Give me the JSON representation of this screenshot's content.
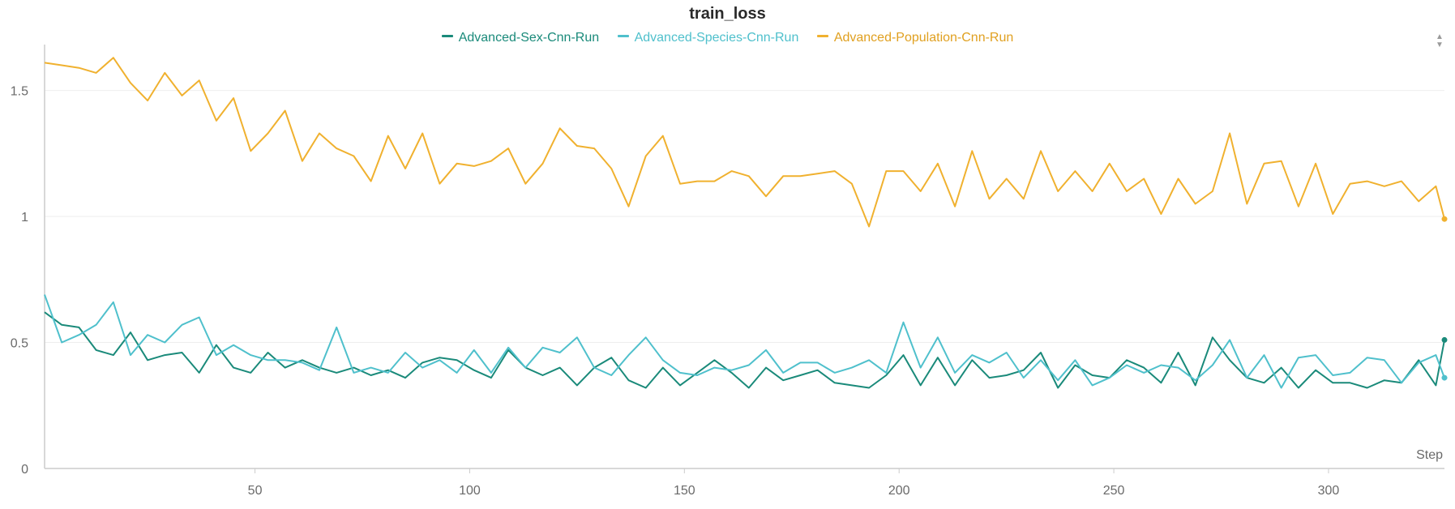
{
  "chart_data": {
    "type": "line",
    "title": "train_loss",
    "xlabel": "Step",
    "ylabel": "",
    "xlim": [
      1,
      327
    ],
    "ylim": [
      0,
      1.65
    ],
    "x_ticks": [
      50,
      100,
      150,
      200,
      250,
      300
    ],
    "y_ticks": [
      0,
      0.5,
      1,
      1.5
    ],
    "y_tick_labels": [
      "0",
      "0.5",
      "1",
      "1.5"
    ],
    "grid": true,
    "legend_position": "top-center",
    "x": [
      1,
      5,
      9,
      13,
      17,
      21,
      25,
      29,
      33,
      37,
      41,
      45,
      49,
      53,
      57,
      61,
      65,
      69,
      73,
      77,
      81,
      85,
      89,
      93,
      97,
      101,
      105,
      109,
      113,
      117,
      121,
      125,
      129,
      133,
      137,
      141,
      145,
      149,
      153,
      157,
      161,
      165,
      169,
      173,
      177,
      181,
      185,
      189,
      193,
      197,
      201,
      205,
      209,
      213,
      217,
      221,
      225,
      229,
      233,
      237,
      241,
      245,
      249,
      253,
      257,
      261,
      265,
      269,
      273,
      277,
      281,
      285,
      289,
      293,
      297,
      301,
      305,
      309,
      313,
      317,
      321,
      325,
      327
    ],
    "series": [
      {
        "name": "Advanced-Sex-Cnn-Run",
        "color": "#1a8a7a",
        "values": [
          0.62,
          0.57,
          0.56,
          0.47,
          0.45,
          0.54,
          0.43,
          0.45,
          0.46,
          0.38,
          0.49,
          0.4,
          0.38,
          0.46,
          0.4,
          0.43,
          0.4,
          0.38,
          0.4,
          0.37,
          0.39,
          0.36,
          0.42,
          0.44,
          0.43,
          0.39,
          0.36,
          0.47,
          0.4,
          0.37,
          0.4,
          0.33,
          0.4,
          0.44,
          0.35,
          0.32,
          0.4,
          0.33,
          0.38,
          0.43,
          0.38,
          0.32,
          0.4,
          0.35,
          0.37,
          0.39,
          0.34,
          0.33,
          0.32,
          0.37,
          0.45,
          0.33,
          0.44,
          0.33,
          0.43,
          0.36,
          0.37,
          0.39,
          0.46,
          0.32,
          0.41,
          0.37,
          0.36,
          0.43,
          0.4,
          0.34,
          0.46,
          0.33,
          0.52,
          0.43,
          0.36,
          0.34,
          0.4,
          0.32,
          0.39,
          0.34,
          0.34,
          0.32,
          0.35,
          0.34,
          0.43,
          0.33,
          0.51
        ]
      },
      {
        "name": "Advanced-Species-Cnn-Run",
        "color": "#4fc0cc",
        "values": [
          0.69,
          0.5,
          0.53,
          0.57,
          0.66,
          0.45,
          0.53,
          0.5,
          0.57,
          0.6,
          0.45,
          0.49,
          0.45,
          0.43,
          0.43,
          0.42,
          0.39,
          0.56,
          0.38,
          0.4,
          0.38,
          0.46,
          0.4,
          0.43,
          0.38,
          0.47,
          0.38,
          0.48,
          0.4,
          0.48,
          0.46,
          0.52,
          0.4,
          0.37,
          0.45,
          0.52,
          0.43,
          0.38,
          0.37,
          0.4,
          0.39,
          0.41,
          0.47,
          0.38,
          0.42,
          0.42,
          0.38,
          0.4,
          0.43,
          0.38,
          0.58,
          0.4,
          0.52,
          0.38,
          0.45,
          0.42,
          0.46,
          0.36,
          0.43,
          0.35,
          0.43,
          0.33,
          0.36,
          0.41,
          0.38,
          0.41,
          0.4,
          0.35,
          0.41,
          0.51,
          0.36,
          0.45,
          0.32,
          0.44,
          0.45,
          0.37,
          0.38,
          0.44,
          0.43,
          0.34,
          0.42,
          0.45,
          0.36
        ]
      },
      {
        "name": "Advanced-Population-Cnn-Run",
        "color": "#f0b12f",
        "values": [
          1.61,
          1.6,
          1.59,
          1.57,
          1.63,
          1.53,
          1.46,
          1.57,
          1.48,
          1.54,
          1.38,
          1.47,
          1.26,
          1.33,
          1.42,
          1.22,
          1.33,
          1.27,
          1.24,
          1.14,
          1.32,
          1.19,
          1.33,
          1.13,
          1.21,
          1.2,
          1.22,
          1.27,
          1.13,
          1.21,
          1.35,
          1.28,
          1.27,
          1.19,
          1.04,
          1.24,
          1.32,
          1.13,
          1.14,
          1.14,
          1.18,
          1.16,
          1.08,
          1.16,
          1.16,
          1.17,
          1.18,
          1.13,
          0.96,
          1.18,
          1.18,
          1.1,
          1.21,
          1.04,
          1.26,
          1.07,
          1.15,
          1.07,
          1.26,
          1.1,
          1.18,
          1.1,
          1.21,
          1.1,
          1.15,
          1.01,
          1.15,
          1.05,
          1.1,
          1.33,
          1.05,
          1.21,
          1.22,
          1.04,
          1.21,
          1.01,
          1.13,
          1.14,
          1.12,
          1.14,
          1.06,
          1.12,
          0.99
        ]
      }
    ]
  }
}
